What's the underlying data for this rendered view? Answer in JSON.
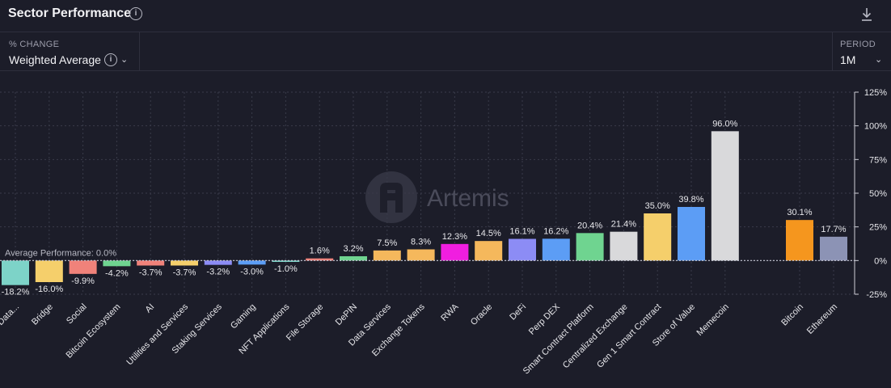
{
  "header": {
    "title": "Sector Performance",
    "info_icon": "info-icon",
    "download_icon": "download-icon"
  },
  "controls": {
    "change": {
      "label": "% CHANGE",
      "value": "Weighted Average"
    },
    "period": {
      "label": "PERIOD",
      "value": "1M"
    }
  },
  "watermark": "Artemis",
  "colors": {
    "background": "#1c1d29",
    "grid": "#3a3b4a",
    "text": "#e6e6ea",
    "average_line": "#c8c9d6"
  },
  "chart_data": {
    "type": "bar",
    "categories": [
      "Data...",
      "Bridge",
      "Social",
      "Bitcoin Ecosystem",
      "AI",
      "Utilities and Services",
      "Staking Services",
      "Gaming",
      "NFT Applications",
      "File Storage",
      "DePIN",
      "Data Services",
      "Exchange Tokens",
      "RWA",
      "Oracle",
      "DeFi",
      "Perp DEX",
      "Smart Contract Platform",
      "Centralized Exchange",
      "Gen 1 Smart Contract",
      "Store of Value",
      "Memecoin",
      "Bitcoin",
      "Ethereum"
    ],
    "values": [
      -18.2,
      -16.0,
      -9.9,
      -4.2,
      -3.7,
      -3.7,
      -3.2,
      -3.0,
      -1.0,
      1.6,
      3.2,
      7.5,
      8.3,
      12.3,
      14.5,
      16.1,
      16.2,
      20.4,
      21.4,
      35.0,
      39.8,
      96.0,
      30.1,
      17.7
    ],
    "value_labels": [
      "-18.2%",
      "-16.0%",
      "-9.9%",
      "-4.2%",
      "-3.7%",
      "-3.7%",
      "-3.2%",
      "-3.0%",
      "-1.0%",
      "1.6%",
      "3.2%",
      "7.5%",
      "8.3%",
      "12.3%",
      "14.5%",
      "16.1%",
      "16.2%",
      "20.4%",
      "21.4%",
      "35.0%",
      "39.8%",
      "96.0%",
      "30.1%",
      "17.7%"
    ],
    "bar_colors": [
      "#7dd3c8",
      "#f5cf6b",
      "#f0827a",
      "#6fd490",
      "#f0827a",
      "#f5cf6b",
      "#8c8cf5",
      "#5c9df5",
      "#7dd3c8",
      "#f0827a",
      "#6fd490",
      "#f5b85c",
      "#f5b85c",
      "#f01ee0",
      "#f5b85c",
      "#8c8cf5",
      "#5c9df5",
      "#6fd490",
      "#d9d9db",
      "#f5cf6b",
      "#5c9df5",
      "#d9d9db",
      "#f5961e",
      "#8c93b5"
    ],
    "yticks": [
      "125%",
      "100%",
      "75%",
      "50%",
      "25%",
      "0%",
      "-25%"
    ],
    "ylim": [
      -25,
      125
    ],
    "average": {
      "label": "Average Performance: 0.0%",
      "value": 0.0
    },
    "grid": true,
    "xlabel": "",
    "ylabel": ""
  }
}
